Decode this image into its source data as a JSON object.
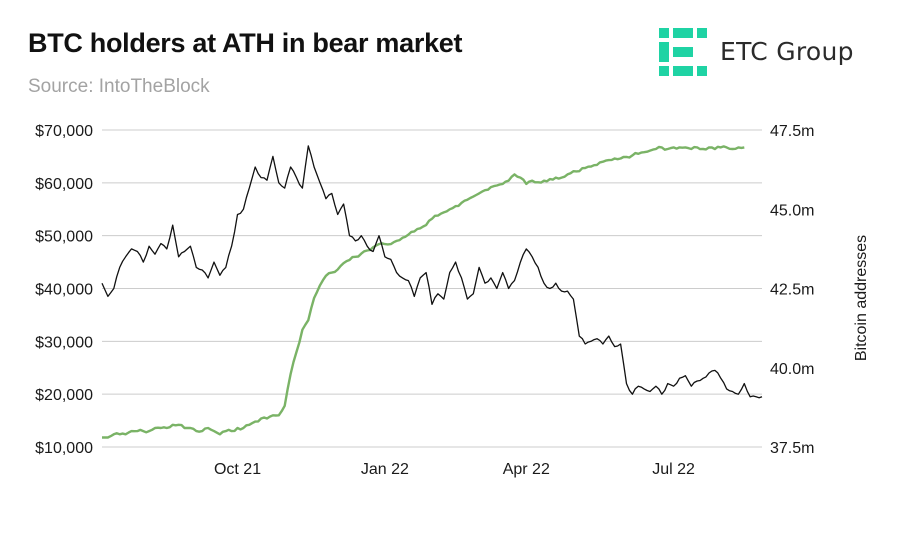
{
  "header": {
    "title": "BTC holders at ATH in bear market",
    "subtitle": "Source: IntoTheBlock"
  },
  "logo": {
    "text": "ETC Group",
    "icon": "etc-group-logo-icon",
    "color": "#1fd3a4"
  },
  "colors": {
    "price": "#111111",
    "holders": "#7ab366",
    "grid": "#cccccc"
  },
  "chart_data": {
    "type": "line",
    "title": "BTC holders at ATH in bear market",
    "subtitle": "Source: IntoTheBlock",
    "x_ticks": [
      {
        "label": "Oct 21",
        "index": 23
      },
      {
        "label": "Jan 22",
        "index": 48
      },
      {
        "label": "Apr 22",
        "index": 72
      },
      {
        "label": "Jul 22",
        "index": 97
      }
    ],
    "x_range": [
      0,
      112
    ],
    "y_left": {
      "min": 10000,
      "max": 70000,
      "ticks": [
        10000,
        20000,
        30000,
        40000,
        50000,
        60000,
        70000
      ],
      "tick_labels": [
        "$10,000",
        "$20,000",
        "$30,000",
        "$40,000",
        "$50,000",
        "$60,000",
        "$70,000"
      ]
    },
    "y_right": {
      "label": "Bitcoin addresses",
      "min": 37.5,
      "max": 47.5,
      "ticks": [
        37.5,
        40.0,
        42.5,
        45.0,
        47.5
      ],
      "tick_labels": [
        "37.5m",
        "40.0m",
        "42.5m",
        "45.0m",
        "47.5m"
      ]
    },
    "grid": true,
    "series": [
      {
        "axis": "left",
        "values": [
          41000,
          38500,
          40000,
          44000,
          46000,
          47500,
          47000,
          45000,
          48000,
          46500,
          48500,
          47500,
          52000,
          46000,
          47000,
          48000,
          44000,
          43500,
          42000,
          45000,
          42500,
          44000,
          48000,
          54000,
          55000,
          59000,
          63000,
          61000,
          60500,
          65000,
          60000,
          59000,
          63000,
          61000,
          59000,
          67000,
          63000,
          60000,
          57000,
          58000,
          54000,
          56000,
          50000,
          49000,
          50000,
          48000,
          47000,
          50000,
          46000,
          45500,
          43000,
          42000,
          41500,
          38500,
          42000,
          43000,
          37000,
          39000,
          38000,
          43000,
          45000,
          42000,
          38000,
          39000,
          44000,
          41000,
          42000,
          40000,
          43000,
          40000,
          41500,
          45000,
          47500,
          46000,
          44000,
          41000,
          40000,
          41000,
          39500,
          39500,
          38000,
          31000,
          29500,
          30000,
          30500,
          29500,
          31000,
          29000,
          29500,
          22000,
          20000,
          21500,
          21000,
          20500,
          21500,
          20000,
          22000,
          21500,
          23000,
          23500,
          21500,
          22500,
          23000,
          24000,
          24500,
          23000,
          21000,
          20500,
          20000,
          22000,
          19500,
          19500,
          19500
        ]
      },
      {
        "axis": "right",
        "values": [
          37.8,
          37.8,
          37.9,
          37.9,
          37.9,
          38.0,
          38.0,
          38.0,
          38.0,
          38.1,
          38.1,
          38.1,
          38.2,
          38.2,
          38.1,
          38.1,
          38.0,
          38.0,
          38.1,
          38.0,
          37.9,
          38.0,
          38.0,
          38.1,
          38.1,
          38.2,
          38.3,
          38.4,
          38.4,
          38.5,
          38.5,
          38.8,
          39.8,
          40.5,
          41.2,
          41.5,
          42.2,
          42.6,
          42.9,
          43.0,
          43.1,
          43.3,
          43.4,
          43.5,
          43.6,
          43.7,
          43.8,
          43.9,
          43.9,
          43.9,
          44.0,
          44.1,
          44.2,
          44.3,
          44.4,
          44.5,
          44.7,
          44.8,
          44.9,
          45.0,
          45.1,
          45.2,
          45.3,
          45.4,
          45.5,
          45.6,
          45.7,
          45.75,
          45.8,
          45.9,
          46.1,
          46.0,
          45.8,
          45.9,
          45.85,
          45.9,
          45.95,
          46.0,
          46.0,
          46.1,
          46.2,
          46.2,
          46.3,
          46.35,
          46.4,
          46.5,
          46.55,
          46.6,
          46.6,
          46.65,
          46.7,
          46.75,
          46.8,
          46.85,
          46.9,
          46.95,
          46.9,
          46.95,
          46.95,
          46.95,
          46.9,
          46.95,
          46.9,
          46.95,
          46.9,
          46.95,
          46.95,
          46.9,
          46.95,
          46.95
        ]
      }
    ]
  }
}
